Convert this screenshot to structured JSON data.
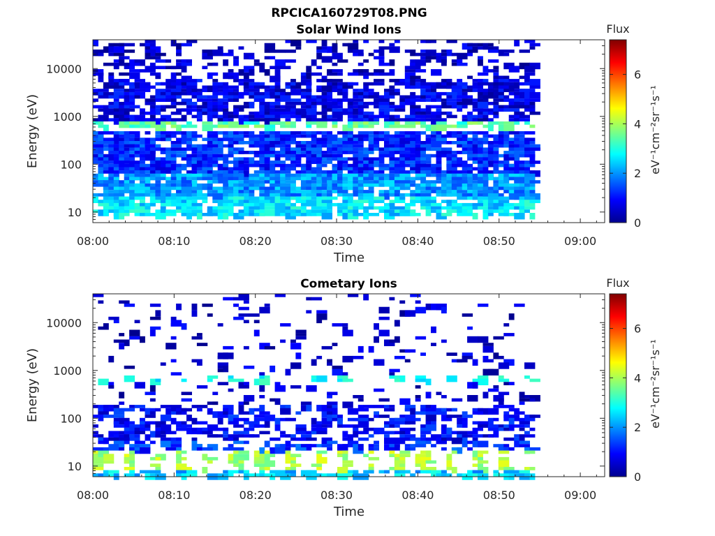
{
  "figure_title": "RPCICA160729T08.PNG",
  "chart_data": [
    {
      "type": "heatmap",
      "title": "Solar Wind Ions",
      "xlabel": "Time",
      "ylabel": "Energy (eV)",
      "x_ticks": [
        "08:00",
        "08:10",
        "08:20",
        "08:30",
        "08:40",
        "08:50",
        "09:00"
      ],
      "x_range_minutes": [
        0,
        63
      ],
      "data_end_minutes": 53.8,
      "y_scale": "log",
      "y_ticks": [
        "10",
        "100",
        "1000",
        "10000"
      ],
      "y_range": [
        6,
        40000
      ],
      "colorbar": {
        "label": "Flux",
        "unit": "eV⁻¹cm⁻²sr⁻¹s⁻¹",
        "ticks": [
          "0",
          "2",
          "4",
          "6"
        ],
        "range": [
          0,
          7.4
        ]
      },
      "bands": [
        {
          "energy_range": [
            8,
            20
          ],
          "flux": 2.6,
          "coverage": 0.6
        },
        {
          "energy_range": [
            20,
            60
          ],
          "flux": 2.0,
          "coverage": 0.75
        },
        {
          "energy_range": [
            60,
            500
          ],
          "flux": 1.2,
          "coverage": 0.7
        },
        {
          "energy_range": [
            550,
            800
          ],
          "flux": 3.4,
          "coverage": 0.55
        },
        {
          "energy_range": [
            800,
            6000
          ],
          "flux": 0.7,
          "coverage": 0.6
        },
        {
          "energy_range": [
            6000,
            40000
          ],
          "flux": 0.5,
          "coverage": 0.25
        }
      ]
    },
    {
      "type": "heatmap",
      "title": "Cometary Ions",
      "xlabel": "Time",
      "ylabel": "Energy (eV)",
      "x_ticks": [
        "08:00",
        "08:10",
        "08:20",
        "08:30",
        "08:40",
        "08:50",
        "09:00"
      ],
      "x_range_minutes": [
        0,
        63
      ],
      "data_end_minutes": 53.8,
      "y_scale": "log",
      "y_ticks": [
        "10",
        "100",
        "1000",
        "10000"
      ],
      "y_range": [
        6,
        40000
      ],
      "colorbar": {
        "label": "Flux",
        "unit": "eV⁻¹cm⁻²sr⁻¹s⁻¹",
        "ticks": [
          "0",
          "2",
          "4",
          "6"
        ],
        "range": [
          0,
          7.4
        ]
      },
      "bands": [
        {
          "energy_range": [
            6,
            8
          ],
          "flux": 2.4,
          "coverage": 0.45
        },
        {
          "energy_range": [
            8,
            20
          ],
          "flux": 3.8,
          "coverage": 0.55,
          "periodic_minutes": 3.3
        },
        {
          "energy_range": [
            20,
            35
          ],
          "flux": 1.3,
          "coverage": 0.4
        },
        {
          "energy_range": [
            35,
            200
          ],
          "flux": 0.9,
          "coverage": 0.35
        },
        {
          "energy_range": [
            550,
            800
          ],
          "flux": 2.6,
          "coverage": 0.45,
          "periodic_minutes": 3.3
        },
        {
          "energy_range": [
            200,
            40000
          ],
          "flux": 0.5,
          "coverage": 0.08
        }
      ]
    }
  ]
}
